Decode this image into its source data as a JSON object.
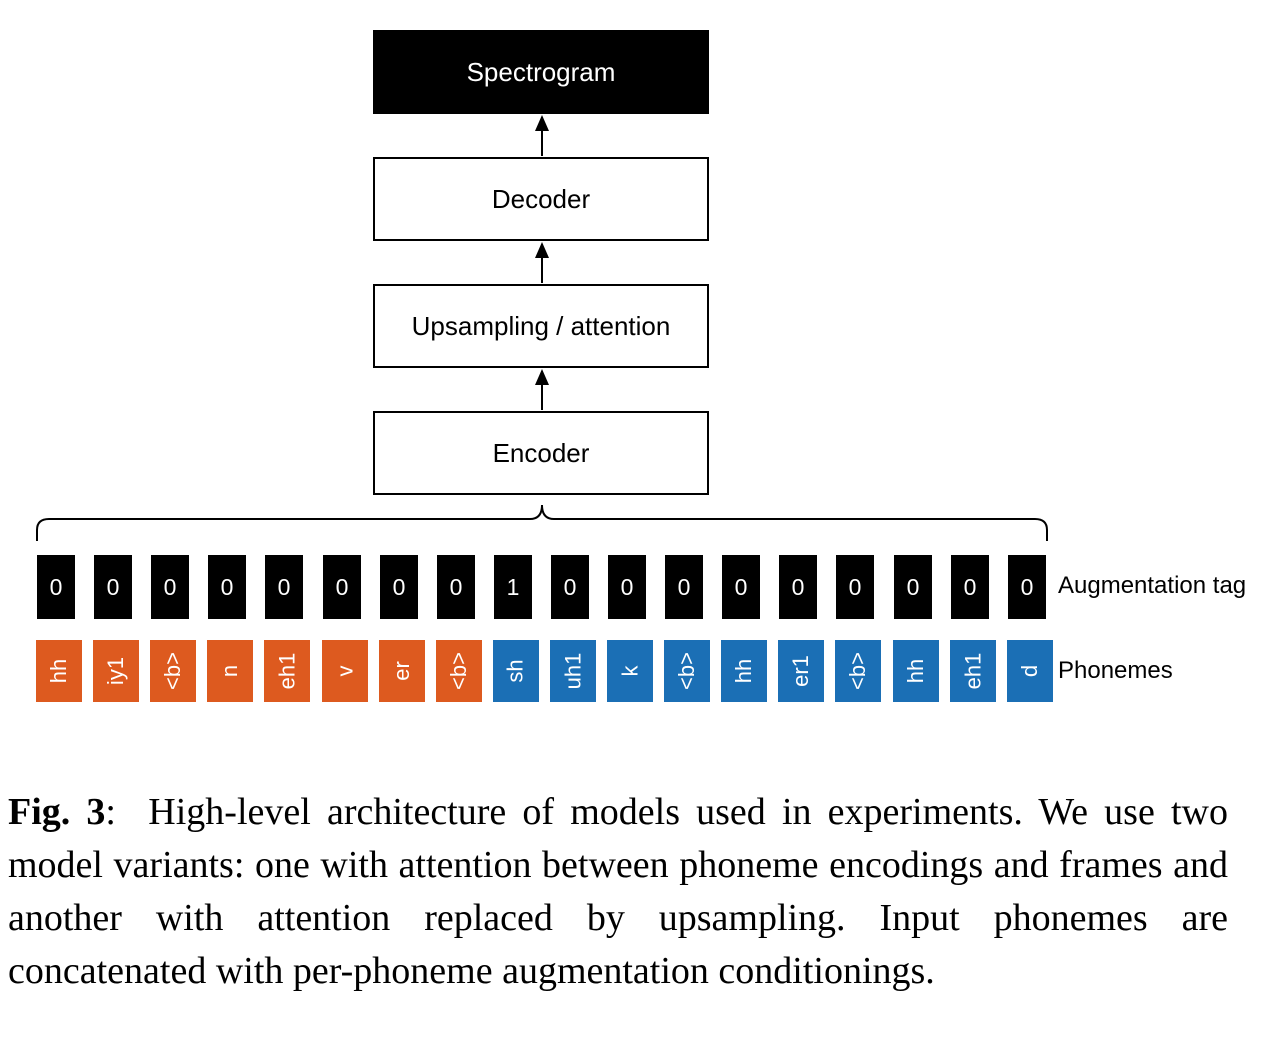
{
  "diagram": {
    "blocks": {
      "spectrogram": "Spectrogram",
      "decoder": "Decoder",
      "upsampling": "Upsampling / attention",
      "encoder": "Encoder"
    },
    "augmentation_label": "Augmentation tag",
    "phonemes_label": "Phonemes",
    "augmentation_tags": [
      "0",
      "0",
      "0",
      "0",
      "0",
      "0",
      "0",
      "0",
      "1",
      "0",
      "0",
      "0",
      "0",
      "0",
      "0",
      "0",
      "0",
      "0"
    ],
    "phonemes": [
      {
        "text": "hh",
        "group": "orange"
      },
      {
        "text": "iy1",
        "group": "orange"
      },
      {
        "text": "<b>",
        "group": "orange"
      },
      {
        "text": "n",
        "group": "orange"
      },
      {
        "text": "eh1",
        "group": "orange"
      },
      {
        "text": "v",
        "group": "orange"
      },
      {
        "text": "er",
        "group": "orange"
      },
      {
        "text": "<b>",
        "group": "orange"
      },
      {
        "text": "sh",
        "group": "blue"
      },
      {
        "text": "uh1",
        "group": "blue"
      },
      {
        "text": "k",
        "group": "blue"
      },
      {
        "text": "<b>",
        "group": "blue"
      },
      {
        "text": "hh",
        "group": "blue"
      },
      {
        "text": "er1",
        "group": "blue"
      },
      {
        "text": "<b>",
        "group": "blue"
      },
      {
        "text": "hh",
        "group": "blue"
      },
      {
        "text": "eh1",
        "group": "blue"
      },
      {
        "text": "d",
        "group": "blue"
      }
    ],
    "colors": {
      "orange": "#dd5a1f",
      "blue": "#1b6fb5",
      "tag": "#000000"
    }
  },
  "caption": {
    "label": "Fig. 3",
    "text": "High-level architecture of models used in experiments. We use two model variants: one with attention between phoneme encodings and frames and another with attention replaced by upsampling. Input phonemes are concatenated with per-phoneme augmentation conditionings."
  }
}
